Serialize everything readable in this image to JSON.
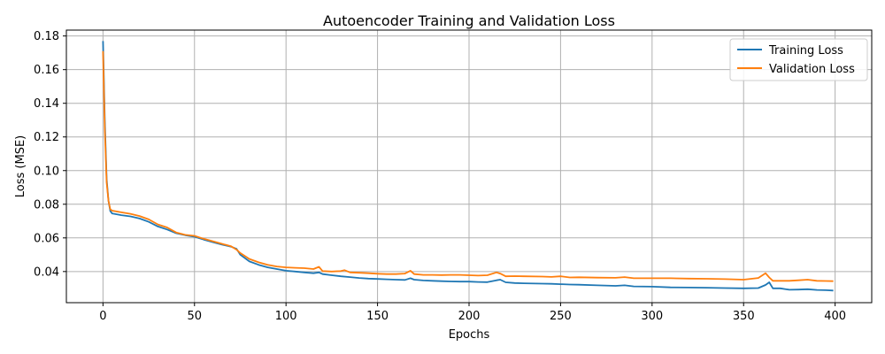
{
  "chart_data": {
    "type": "line",
    "title": "Autoencoder Training and Validation Loss",
    "xlabel": "Epochs",
    "ylabel": "Loss (MSE)",
    "xlim": [
      -20,
      420
    ],
    "ylim": [
      0.0215,
      0.1835
    ],
    "grid": true,
    "legend_position": "top-right",
    "xticks": [
      0,
      50,
      100,
      150,
      200,
      250,
      300,
      350,
      400
    ],
    "xtick_labels": [
      "0",
      "50",
      "100",
      "150",
      "200",
      "250",
      "300",
      "350",
      "400"
    ],
    "yticks": [
      0.04,
      0.06,
      0.08,
      0.1,
      0.12,
      0.14,
      0.16,
      0.18
    ],
    "ytick_labels": [
      "0.04",
      "0.06",
      "0.08",
      "0.10",
      "0.12",
      "0.14",
      "0.16",
      "0.18"
    ],
    "series": [
      {
        "name": "Training Loss",
        "color": "#1f77b4",
        "points": [
          [
            0,
            0.177
          ],
          [
            1,
            0.13
          ],
          [
            2,
            0.095
          ],
          [
            3,
            0.082
          ],
          [
            4,
            0.076
          ],
          [
            5,
            0.0745
          ],
          [
            10,
            0.0735
          ],
          [
            15,
            0.0728
          ],
          [
            20,
            0.0715
          ],
          [
            25,
            0.0695
          ],
          [
            30,
            0.0668
          ],
          [
            35,
            0.065
          ],
          [
            40,
            0.0628
          ],
          [
            45,
            0.0616
          ],
          [
            50,
            0.0607
          ],
          [
            55,
            0.059
          ],
          [
            60,
            0.0575
          ],
          [
            65,
            0.056
          ],
          [
            70,
            0.0548
          ],
          [
            73,
            0.0535
          ],
          [
            75,
            0.05
          ],
          [
            80,
            0.046
          ],
          [
            85,
            0.044
          ],
          [
            90,
            0.0425
          ],
          [
            95,
            0.0415
          ],
          [
            100,
            0.0405
          ],
          [
            105,
            0.04
          ],
          [
            110,
            0.0395
          ],
          [
            115,
            0.039
          ],
          [
            118,
            0.0395
          ],
          [
            120,
            0.0385
          ],
          [
            125,
            0.0378
          ],
          [
            130,
            0.0372
          ],
          [
            135,
            0.0367
          ],
          [
            140,
            0.0362
          ],
          [
            145,
            0.0358
          ],
          [
            150,
            0.0356
          ],
          [
            155,
            0.0354
          ],
          [
            160,
            0.0352
          ],
          [
            165,
            0.035
          ],
          [
            168,
            0.036
          ],
          [
            170,
            0.0352
          ],
          [
            175,
            0.0347
          ],
          [
            180,
            0.0345
          ],
          [
            185,
            0.0343
          ],
          [
            190,
            0.0341
          ],
          [
            195,
            0.034
          ],
          [
            200,
            0.034
          ],
          [
            205,
            0.0338
          ],
          [
            210,
            0.0337
          ],
          [
            215,
            0.0348
          ],
          [
            217,
            0.0352
          ],
          [
            220,
            0.0336
          ],
          [
            225,
            0.0332
          ],
          [
            230,
            0.033
          ],
          [
            240,
            0.0328
          ],
          [
            245,
            0.0327
          ],
          [
            250,
            0.0325
          ],
          [
            255,
            0.0323
          ],
          [
            260,
            0.0322
          ],
          [
            270,
            0.0318
          ],
          [
            280,
            0.0315
          ],
          [
            285,
            0.0318
          ],
          [
            290,
            0.0312
          ],
          [
            300,
            0.031
          ],
          [
            310,
            0.0306
          ],
          [
            320,
            0.0305
          ],
          [
            330,
            0.0304
          ],
          [
            340,
            0.0302
          ],
          [
            350,
            0.03
          ],
          [
            358,
            0.0302
          ],
          [
            362,
            0.032
          ],
          [
            364,
            0.0336
          ],
          [
            366,
            0.03
          ],
          [
            370,
            0.03
          ],
          [
            375,
            0.0292
          ],
          [
            380,
            0.0293
          ],
          [
            385,
            0.0295
          ],
          [
            390,
            0.0291
          ],
          [
            395,
            0.0289
          ],
          [
            399,
            0.0287
          ]
        ]
      },
      {
        "name": "Validation Loss",
        "color": "#ff7f0e",
        "points": [
          [
            0,
            0.171
          ],
          [
            1,
            0.125
          ],
          [
            2,
            0.093
          ],
          [
            3,
            0.082
          ],
          [
            4,
            0.077
          ],
          [
            5,
            0.0762
          ],
          [
            10,
            0.0752
          ],
          [
            15,
            0.0743
          ],
          [
            20,
            0.073
          ],
          [
            25,
            0.071
          ],
          [
            30,
            0.068
          ],
          [
            35,
            0.0662
          ],
          [
            40,
            0.0632
          ],
          [
            45,
            0.0618
          ],
          [
            50,
            0.0612
          ],
          [
            55,
            0.0595
          ],
          [
            60,
            0.058
          ],
          [
            65,
            0.0565
          ],
          [
            70,
            0.055
          ],
          [
            73,
            0.053
          ],
          [
            75,
            0.051
          ],
          [
            80,
            0.0475
          ],
          [
            85,
            0.0455
          ],
          [
            90,
            0.044
          ],
          [
            95,
            0.043
          ],
          [
            100,
            0.0425
          ],
          [
            105,
            0.0422
          ],
          [
            110,
            0.042
          ],
          [
            115,
            0.0415
          ],
          [
            118,
            0.0428
          ],
          [
            120,
            0.0403
          ],
          [
            125,
            0.04
          ],
          [
            130,
            0.0403
          ],
          [
            132,
            0.0408
          ],
          [
            135,
            0.0395
          ],
          [
            140,
            0.0393
          ],
          [
            145,
            0.039
          ],
          [
            150,
            0.0387
          ],
          [
            155,
            0.0385
          ],
          [
            160,
            0.0385
          ],
          [
            165,
            0.0388
          ],
          [
            168,
            0.0405
          ],
          [
            170,
            0.0385
          ],
          [
            175,
            0.038
          ],
          [
            180,
            0.038
          ],
          [
            185,
            0.0379
          ],
          [
            190,
            0.038
          ],
          [
            195,
            0.038
          ],
          [
            200,
            0.0378
          ],
          [
            205,
            0.0376
          ],
          [
            210,
            0.0378
          ],
          [
            215,
            0.0395
          ],
          [
            217,
            0.0388
          ],
          [
            220,
            0.0372
          ],
          [
            225,
            0.0373
          ],
          [
            230,
            0.0372
          ],
          [
            240,
            0.037
          ],
          [
            245,
            0.0368
          ],
          [
            250,
            0.0372
          ],
          [
            255,
            0.0365
          ],
          [
            260,
            0.0366
          ],
          [
            270,
            0.0364
          ],
          [
            280,
            0.0363
          ],
          [
            285,
            0.0367
          ],
          [
            290,
            0.036
          ],
          [
            300,
            0.036
          ],
          [
            310,
            0.036
          ],
          [
            320,
            0.0358
          ],
          [
            330,
            0.0357
          ],
          [
            340,
            0.0355
          ],
          [
            350,
            0.0352
          ],
          [
            358,
            0.0362
          ],
          [
            362,
            0.039
          ],
          [
            364,
            0.0365
          ],
          [
            366,
            0.0345
          ],
          [
            370,
            0.0345
          ],
          [
            375,
            0.0345
          ],
          [
            380,
            0.0348
          ],
          [
            385,
            0.0352
          ],
          [
            390,
            0.0345
          ],
          [
            395,
            0.0344
          ],
          [
            399,
            0.0343
          ]
        ]
      }
    ]
  }
}
